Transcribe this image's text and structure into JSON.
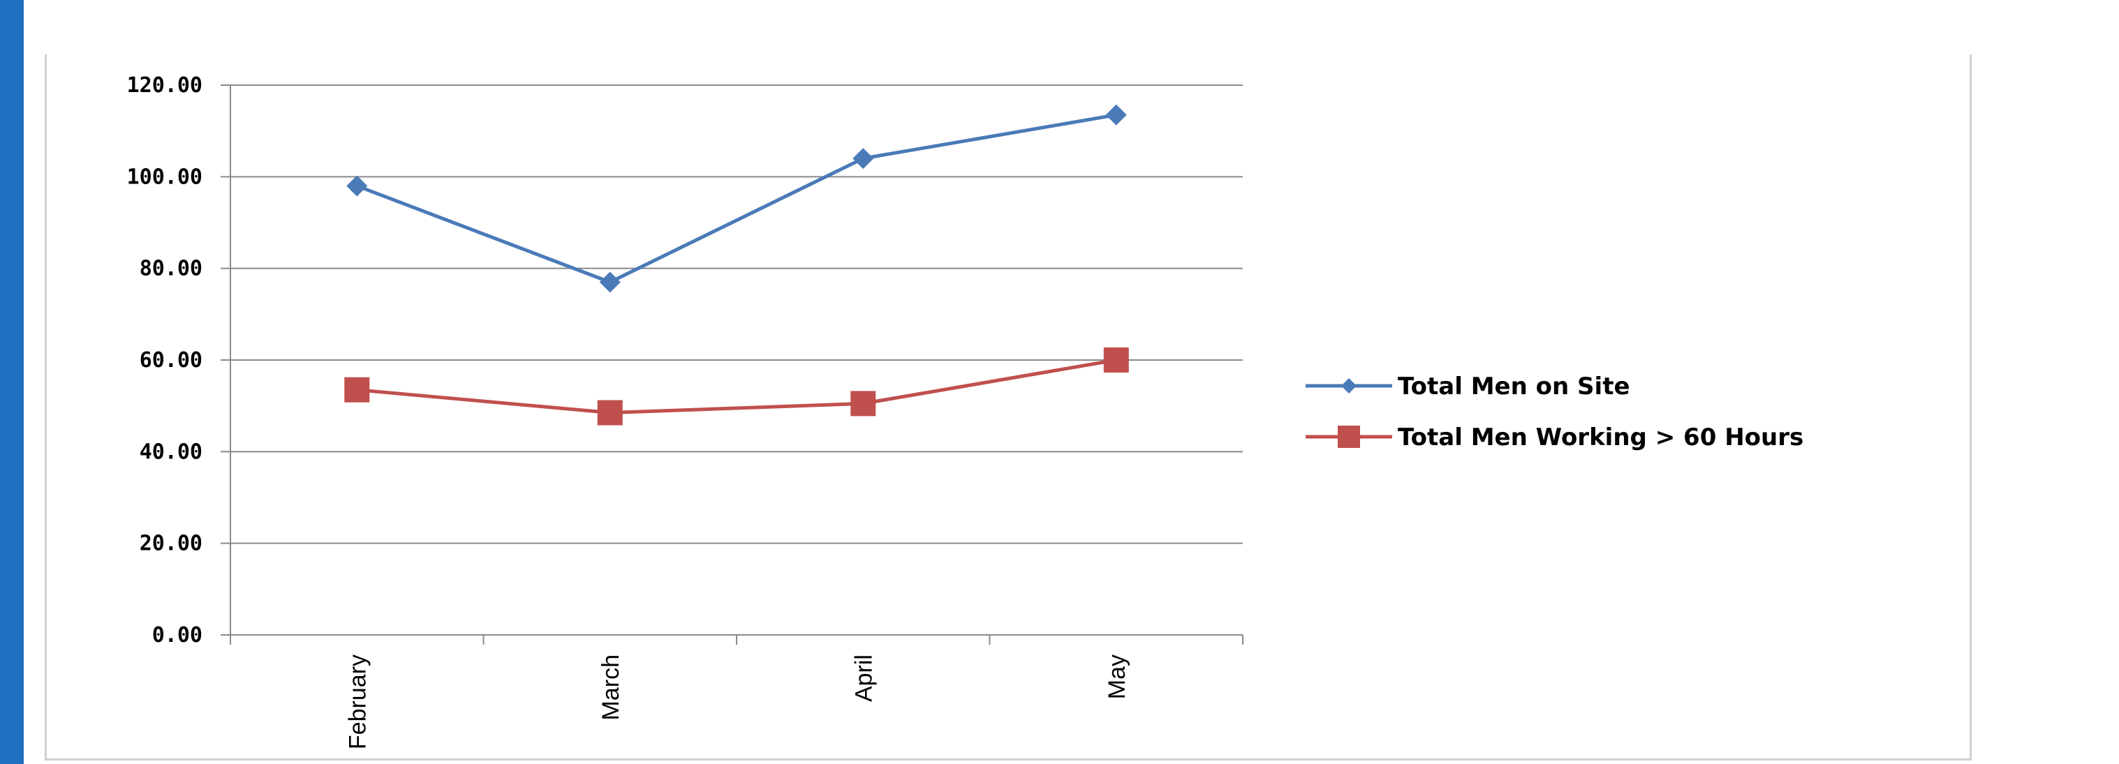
{
  "chart_data": {
    "type": "line",
    "categories": [
      "February",
      "March",
      "April",
      "May"
    ],
    "series": [
      {
        "name": "Total Men on Site",
        "values": [
          98,
          77,
          104,
          113.5
        ],
        "color": "#4a7ab8",
        "marker": "diamond"
      },
      {
        "name": "Total Men Working > 60 Hours",
        "values": [
          53.5,
          48.5,
          50.5,
          60
        ],
        "color": "#c0504d",
        "marker": "square"
      }
    ],
    "yticks": [
      "0.00",
      "20.00",
      "40.00",
      "60.00",
      "80.00",
      "100.00",
      "120.00"
    ],
    "ylim": [
      0,
      120
    ],
    "grid": true,
    "legend_position": "right",
    "title": "",
    "xlabel": "",
    "ylabel": ""
  }
}
